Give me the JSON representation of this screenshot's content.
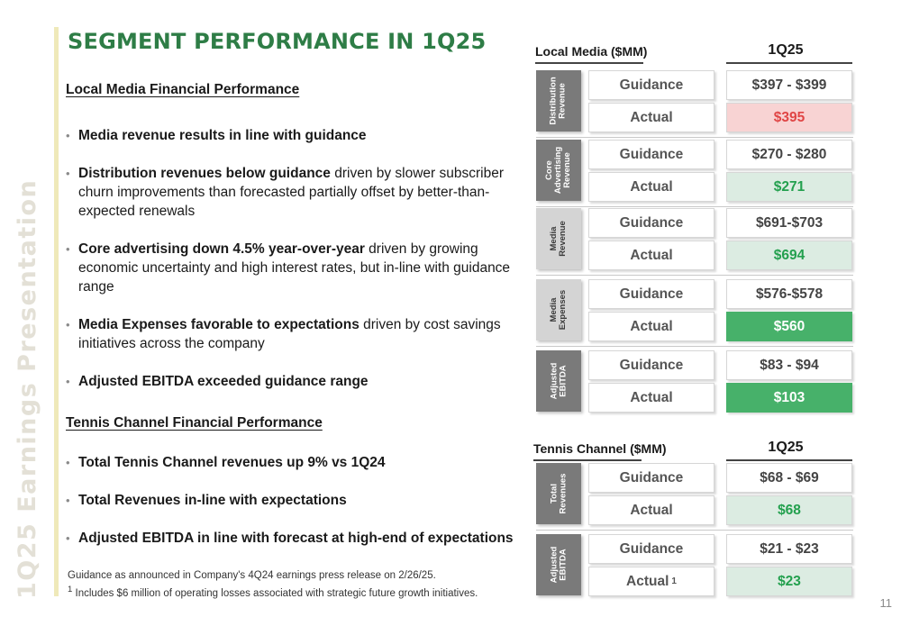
{
  "side_text": "1Q25 Earnings Presentation",
  "title": "SEGMENT PERFORMANCE IN 1Q25",
  "local_media_section": {
    "heading": "Local Media Financial Performance",
    "bullets": [
      {
        "strong": "Media revenue results in line with guidance",
        "rest": ""
      },
      {
        "strong": "Distribution revenues below guidance",
        "rest": " driven by slower subscriber churn improvements than forecasted partially offset by better-than-expected renewals"
      },
      {
        "strong": "Core advertising down 4.5% year-over-year",
        "rest": " driven by growing economic uncertainty and high interest rates, but in-line with guidance range"
      },
      {
        "strong": "Media Expenses favorable to expectations",
        "rest": " driven by cost savings initiatives across the company"
      },
      {
        "strong": "Adjusted EBITDA exceeded guidance range",
        "rest": ""
      }
    ]
  },
  "tennis_section": {
    "heading": "Tennis Channel Financial Performance",
    "bullets": [
      {
        "strong": "Total Tennis Channel revenues up 9% vs 1Q24",
        "rest": ""
      },
      {
        "strong": "Total Revenues in-line with expectations",
        "rest": ""
      },
      {
        "strong": "Adjusted EBITDA in line with forecast at high-end of expectations",
        "rest": ""
      }
    ]
  },
  "footnotes": {
    "line1": "Guidance as announced in Company's 4Q24 earnings press release on 2/26/25.",
    "line2_marker": "1",
    "line2": " Includes $6 million of operating losses associated with strategic future growth initiatives."
  },
  "page_number": "11",
  "local_media_table": {
    "title": "Local Media ($MM)",
    "period": "1Q25",
    "groups": [
      {
        "label": "Distribution\nRevenue",
        "style": "dark",
        "guidance_label": "Guidance",
        "guidance": "$397 - $399",
        "actual_label": "Actual",
        "actual": "$395",
        "actual_style": "red",
        "actual_color": "#e04545"
      },
      {
        "label": "Core\nAdvertising\nRevenue",
        "style": "dark",
        "guidance_label": "Guidance",
        "guidance": "$270 - $280",
        "actual_label": "Actual",
        "actual": "$271",
        "actual_style": "lightgreen",
        "actual_color": "#23a04e"
      },
      {
        "label": "Media\nRevenue",
        "style": "light",
        "guidance_label": "Guidance",
        "guidance": "$691-$703",
        "actual_label": "Actual",
        "actual": "$694",
        "actual_style": "lightgreen",
        "actual_color": "#23a04e"
      },
      {
        "label": "Media\nExpenses",
        "style": "light",
        "guidance_label": "Guidance",
        "guidance": "$576-$578",
        "actual_label": "Actual",
        "actual": "$560",
        "actual_style": "green",
        "actual_color": "#47b16a"
      },
      {
        "label": "Adjusted\nEBITDA",
        "style": "dark",
        "guidance_label": "Guidance",
        "guidance": "$83 - $94",
        "actual_label": "Actual",
        "actual": "$103",
        "actual_style": "green",
        "actual_color": "#47b16a"
      }
    ]
  },
  "tennis_table": {
    "title": "Tennis Channel ($MM)",
    "period": "1Q25",
    "groups": [
      {
        "label": "Total\nRevenues",
        "style": "dark",
        "guidance_label": "Guidance",
        "guidance": "$68 - $69",
        "actual_label": "Actual",
        "actual": "$68",
        "actual_style": "lightgreen",
        "actual_color": "#23a04e"
      },
      {
        "label": "Adjusted\nEBITDA",
        "style": "dark",
        "guidance_label": "Guidance",
        "guidance": "$21 - $23",
        "actual_label": "Actual",
        "actual_marker": "1",
        "actual": "$23",
        "actual_style": "lightgreen",
        "actual_color": "#23a04e"
      }
    ]
  },
  "colors": {
    "title_green": "#2e7d46",
    "accent_bar": "#efe9b9",
    "label_dark": "#7a7a7a",
    "label_light": "#d4d4d4"
  }
}
